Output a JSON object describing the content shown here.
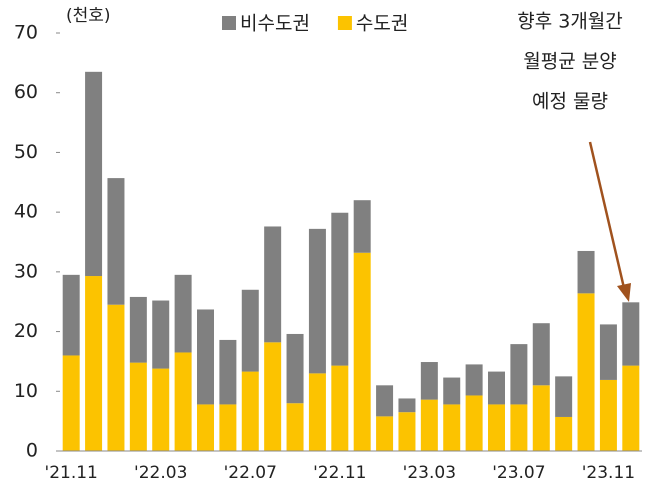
{
  "chart_data": {
    "type": "bar",
    "stacked": true,
    "unit_label": "(천호)",
    "annotation": [
      "향후 3개월간",
      "월평균 분양",
      "예정 물량"
    ],
    "categories": [
      "'21.11",
      null,
      null,
      null,
      "'22.03",
      null,
      null,
      null,
      "'22.07",
      null,
      null,
      null,
      "'22.11",
      null,
      null,
      null,
      "'23.03",
      null,
      null,
      null,
      "'23.07",
      null,
      null,
      null,
      "'23.11",
      null
    ],
    "series": [
      {
        "name": "수도권",
        "color": "#fcc300",
        "values": [
          16,
          29.3,
          24.5,
          14.8,
          13.8,
          16.5,
          7.8,
          7.8,
          13.3,
          18.2,
          8,
          13,
          14.3,
          33.2,
          5.8,
          6.5,
          8.6,
          7.8,
          9.3,
          7.8,
          7.8,
          11,
          5.7,
          26.4,
          11.9,
          14.3
        ]
      },
      {
        "name": "비수도권",
        "color": "#808080",
        "values": [
          13.5,
          34.2,
          21.2,
          11,
          11.4,
          13,
          15.9,
          10.8,
          13.7,
          19.4,
          11.6,
          24.2,
          25.6,
          8.8,
          5.2,
          2.3,
          6.3,
          4.5,
          5.2,
          5.5,
          10.1,
          10.4,
          6.8,
          7.1,
          9.3,
          10.6
        ]
      }
    ],
    "ylim": [
      0,
      70
    ],
    "yticks": [
      0,
      10,
      20,
      30,
      40,
      50,
      60,
      70
    ]
  }
}
